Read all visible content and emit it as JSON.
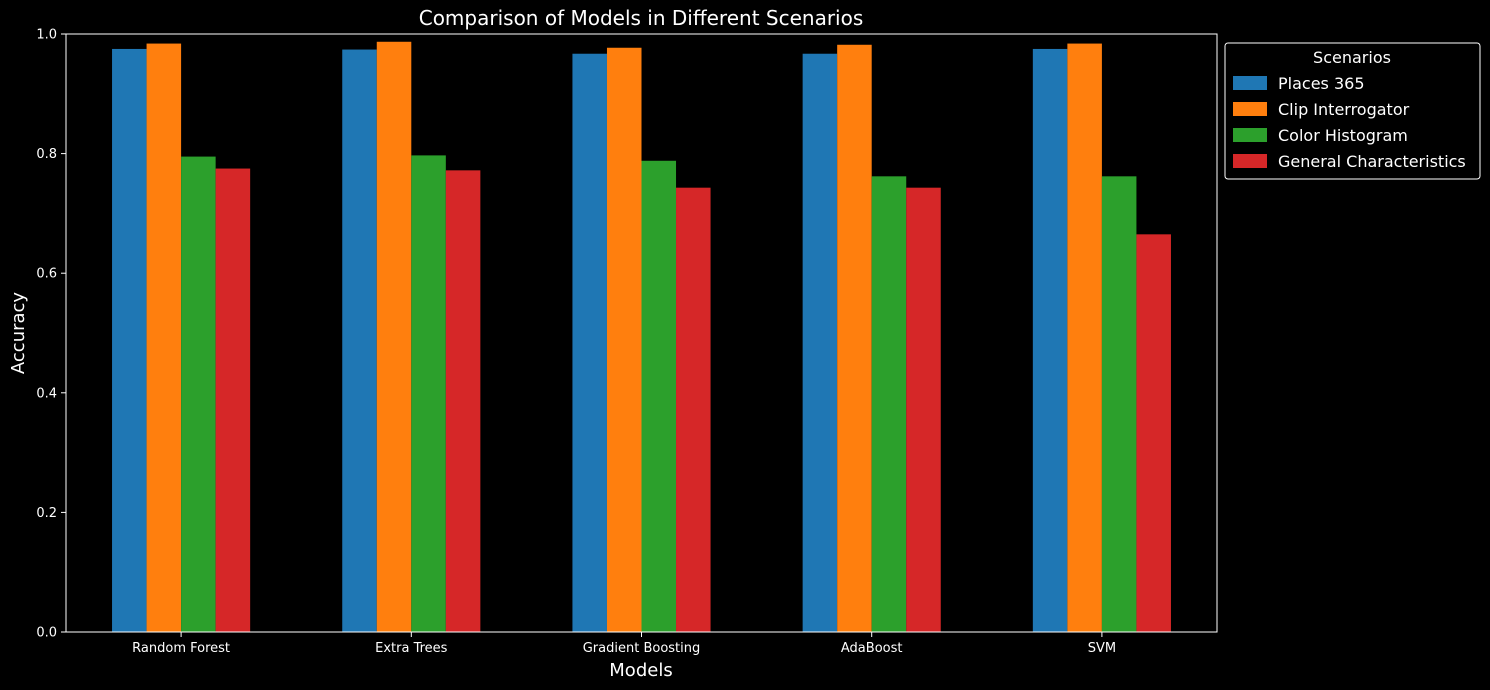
{
  "chart_data": {
    "type": "bar",
    "title": "Comparison of Models in Different Scenarios",
    "xlabel": "Models",
    "ylabel": "Accuracy",
    "ylim": [
      0,
      1.0
    ],
    "yticks": [
      "0.0",
      "0.2",
      "0.4",
      "0.6",
      "0.8",
      "1.0"
    ],
    "categories": [
      "Random Forest",
      "Extra Trees",
      "Gradient Boosting",
      "AdaBoost",
      "SVM"
    ],
    "legend_title": "Scenarios",
    "legend_position": "outside upper right",
    "grid": false,
    "background": "#000000",
    "series": [
      {
        "name": "Places 365",
        "color": "#1f77b4",
        "values": [
          0.975,
          0.974,
          0.967,
          0.967,
          0.975
        ]
      },
      {
        "name": "Clip Interrogator",
        "color": "#ff7f0e",
        "values": [
          0.984,
          0.987,
          0.977,
          0.982,
          0.984
        ]
      },
      {
        "name": "Color Histogram",
        "color": "#2ca02c",
        "values": [
          0.795,
          0.797,
          0.788,
          0.762,
          0.762
        ]
      },
      {
        "name": "General Characteristics",
        "color": "#d62728",
        "values": [
          0.775,
          0.772,
          0.743,
          0.743,
          0.665
        ]
      }
    ]
  }
}
